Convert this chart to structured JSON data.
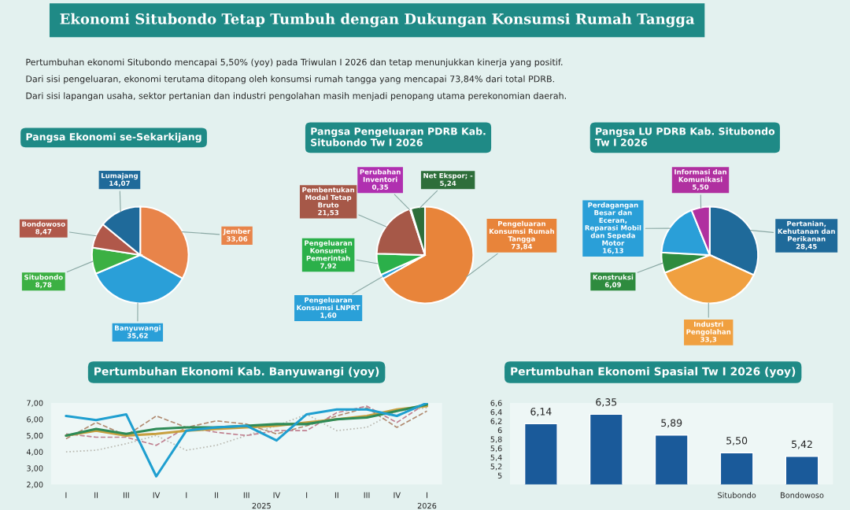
{
  "chart_data": [
    {
      "type": "other",
      "title": "Ekonomi Situbondo Tetap Tumbuh dengan Dukungan Konsumsi Rumah Tangga",
      "annotations": [
        "Pertumbuhan ekonomi Situbondo mencapai 5,50% (yoy) pada Triwulan I 2026 dan tetap menunjukkan kinerja yang positif.",
        "Dari sisi pengeluaran, ekonomi terutama ditopang oleh konsumsi rumah tangga yang mencapai 73,84% dari total PDRB.",
        "Dari sisi lapangan usaha, sektor pertanian dan industri pengolahan masih menjadi penopang utama perekonomian daerah."
      ]
    },
    {
      "type": "pie",
      "title": "Pangsa Ekonomi se-Sekarkijang",
      "categories": [
        "Jember",
        "Banyuwangi",
        "Situbondo",
        "Bondowoso",
        "Lumajang"
      ],
      "values": [
        33.06,
        35.62,
        8.78,
        8.47,
        14.07
      ],
      "value_labels": [
        "33,06",
        "35,62",
        "8,78",
        "8,47",
        "14,07"
      ],
      "colors": [
        "#e8844a",
        "#2a9fd8",
        "#3cb043",
        "#b0584a",
        "#1f6a9a"
      ]
    },
    {
      "type": "pie",
      "title": "Pangsa Pengeluaran PDRB Kab. Situbondo Tw I 2026",
      "categories": [
        "Pengeluaran Konsumsi Rumah Tangga",
        "Pengeluaran Konsumsi LNPRT",
        "Pengeluaran Konsumsi Pemerintah",
        "Pembentukan Modal Tetap Bruto",
        "Perubahan Inventori",
        "Net Ekspor; -"
      ],
      "values": [
        73.84,
        1.6,
        7.92,
        21.53,
        0.35,
        5.24
      ],
      "value_labels": [
        "73,84",
        "1,60",
        "7,92",
        "21,53",
        "0,35",
        "5,24"
      ],
      "colors": [
        "#e8843a",
        "#2aa0d8",
        "#2bb04a",
        "#a65848",
        "#b030b0",
        "#2e6e3a"
      ]
    },
    {
      "type": "pie",
      "title": "Pangsa LU PDRB Kab. Situbondo Tw I 2026",
      "categories": [
        "Pertanian, Kehutanan dan Perikanan",
        "Industri Pengolahan",
        "Konstruksi",
        "Perdagangan Besar dan Eceran, Reparasi Mobil dan Sepeda Motor",
        "Informasi dan Komunikasi"
      ],
      "values": [
        28.45,
        33.3,
        6.09,
        16.13,
        5.5
      ],
      "value_labels": [
        "28,45",
        "33,3",
        "6,09",
        "16,13",
        "5,50"
      ],
      "colors": [
        "#1f6a9a",
        "#f0a040",
        "#2e8b3e",
        "#2a9fd8",
        "#b030a0"
      ]
    },
    {
      "type": "line",
      "title": "Pertumbuhan Ekonomi Kab. Banyuwangi (yoy)",
      "categories": [
        "I",
        "II",
        "III",
        "IV",
        "I",
        "II",
        "III",
        "IV",
        "I",
        "II",
        "III",
        "IV",
        "I"
      ],
      "series": [
        {
          "color": "#b8b8b0",
          "line_style": "dotted",
          "values": [
            4.0,
            4.1,
            4.5,
            5.0,
            4.1,
            4.4,
            5.0,
            5.6,
            6.3,
            5.3,
            5.5,
            6.5,
            6.7
          ]
        },
        {
          "color": "#b08a70",
          "line_style": "dashed",
          "values": [
            4.8,
            5.8,
            5.0,
            6.2,
            5.5,
            5.9,
            5.7,
            5.1,
            5.6,
            6.2,
            6.7,
            5.5,
            6.5
          ]
        },
        {
          "color": "#c08090",
          "line_style": "dashed",
          "values": [
            5.1,
            4.9,
            4.9,
            4.4,
            5.5,
            5.2,
            5.0,
            5.3,
            5.3,
            6.4,
            6.8,
            5.8,
            7.0
          ]
        },
        {
          "color": "#c8a040",
          "line_style": "solid",
          "values": [
            5.0,
            5.3,
            5.0,
            5.1,
            5.3,
            5.4,
            5.5,
            5.6,
            5.8,
            6.0,
            6.2,
            6.6,
            6.8
          ]
        },
        {
          "color": "#2e8b57",
          "line_style": "solid",
          "values": [
            5.0,
            5.4,
            5.1,
            5.4,
            5.5,
            5.5,
            5.6,
            5.7,
            5.7,
            6.0,
            6.1,
            6.5,
            6.9
          ]
        },
        {
          "color": "#1f9fd0",
          "line_style": "solid",
          "values": [
            6.2,
            5.95,
            6.3,
            2.5,
            5.3,
            5.5,
            5.6,
            4.7,
            6.3,
            6.6,
            6.6,
            6.2,
            7.0
          ]
        }
      ],
      "ylim": [
        2,
        7
      ],
      "yticks": [
        {
          "value": 2,
          "label": "2,00"
        },
        {
          "value": 3,
          "label": "3,00"
        },
        {
          "value": 4,
          "label": "4,00"
        },
        {
          "value": 5,
          "label": "5,00"
        },
        {
          "value": 6,
          "label": "6,00"
        },
        {
          "value": 7,
          "label": "7,00"
        }
      ],
      "annotations": [
        "2025",
        "2026"
      ],
      "grid": false
    },
    {
      "type": "bar",
      "title": "Pertumbuhan Ekonomi Spasial Tw I 2026 (yoy)",
      "categories": [
        null,
        null,
        null,
        "Situbondo",
        "Bondowoso"
      ],
      "values": [
        6.14,
        6.35,
        5.89,
        5.5,
        5.42
      ],
      "value_labels": [
        "6,14",
        "6,35",
        "5,89",
        "5,50",
        "5,42"
      ],
      "colors": [
        "#1a5a9a",
        "#1a5a9a",
        "#1a5a9a",
        "#1a5a9a",
        "#1a5a9a"
      ],
      "ylim": [
        4.8,
        6.6
      ],
      "yticks": [
        {
          "value": 5,
          "label": "5"
        },
        {
          "value": 5.2,
          "label": "5,2"
        },
        {
          "value": 5.4,
          "label": "5,4"
        },
        {
          "value": 5.6,
          "label": "5,6"
        },
        {
          "value": 5.8,
          "label": "5,8"
        },
        {
          "value": 6,
          "label": "6"
        },
        {
          "value": 6.2,
          "label": "6,2"
        },
        {
          "value": 6.4,
          "label": "6,4"
        },
        {
          "value": 6.6,
          "label": "6,6"
        }
      ],
      "grid": false
    }
  ]
}
